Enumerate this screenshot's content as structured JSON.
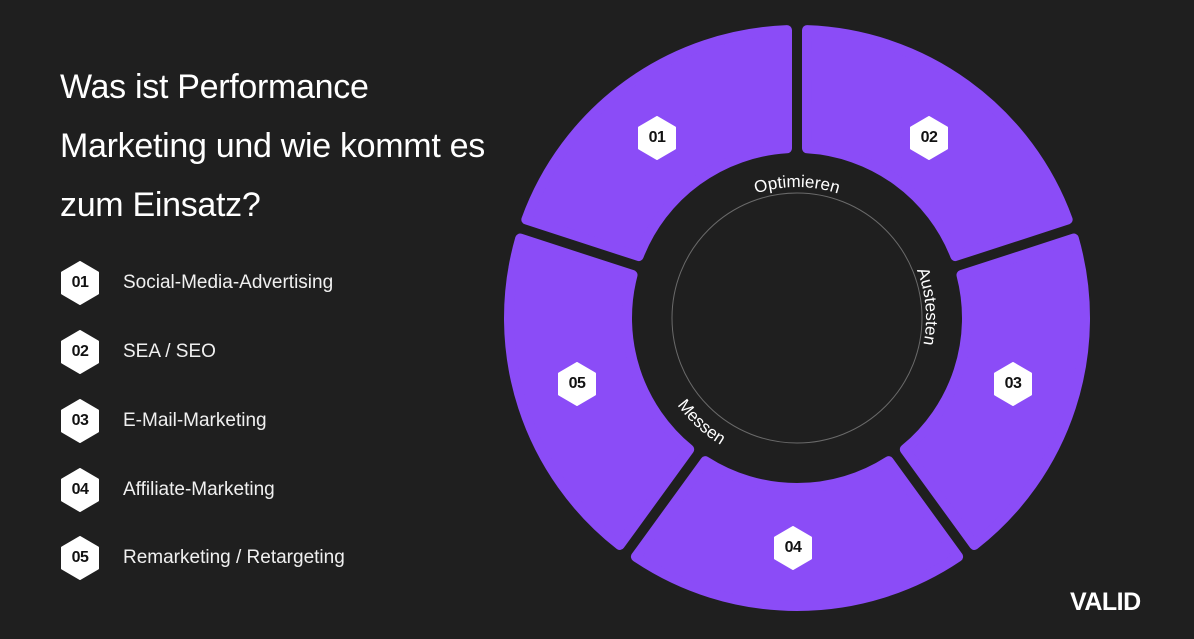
{
  "title": "Was ist Performance Marketing und wie kommt es zum Einsatz?",
  "list": [
    {
      "num": "01",
      "label": "Social-Media-Advertising"
    },
    {
      "num": "02",
      "label": "SEA / SEO"
    },
    {
      "num": "03",
      "label": "E-Mail-Marketing"
    },
    {
      "num": "04",
      "label": "Affiliate-Marketing"
    },
    {
      "num": "05",
      "label": "Remarketing / Retargeting"
    }
  ],
  "cycle": {
    "segments": [
      "01",
      "02",
      "03",
      "04",
      "05"
    ],
    "labels": {
      "optimieren": "Optimieren",
      "austesten": "Austesten",
      "messen": "Messen"
    }
  },
  "colors": {
    "accent": "#8b4cf7",
    "background": "#1f1f1f"
  },
  "logo": "VALID"
}
